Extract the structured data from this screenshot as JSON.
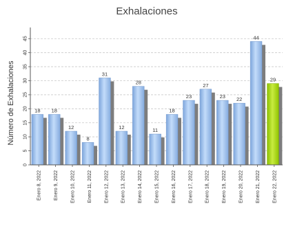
{
  "chart_data": {
    "type": "bar",
    "title": "Exhalaciones",
    "xlabel": "",
    "ylabel": "Número de Exhalaciones",
    "ylim": [
      0,
      48
    ],
    "yticks": [
      0,
      5,
      10,
      15,
      20,
      25,
      30,
      35,
      40,
      45
    ],
    "grid": true,
    "categories": [
      "Enero 8, 2022",
      "Enero 9, 2022",
      "Enero 10, 2022",
      "Enero 11, 2022",
      "Enero 12, 2022",
      "Enero 13, 2022",
      "Enero 14, 2022",
      "Enero 15, 2022",
      "Enero 16, 2022",
      "Enero 17, 2022",
      "Enero 18, 2022",
      "Enero 19, 2022",
      "Enero 20, 2022",
      "Enero 21, 2022",
      "Enero 22, 2022"
    ],
    "values": [
      18,
      18,
      12,
      8,
      31,
      12,
      28,
      11,
      18,
      23,
      27,
      23,
      22,
      44,
      29
    ],
    "colors": {
      "bar": "#9ec4f0",
      "bar_highlight": "#a8d818",
      "shadow": "#7d7d7d",
      "grid": "#c8c8c8",
      "axis": "#555555"
    }
  }
}
